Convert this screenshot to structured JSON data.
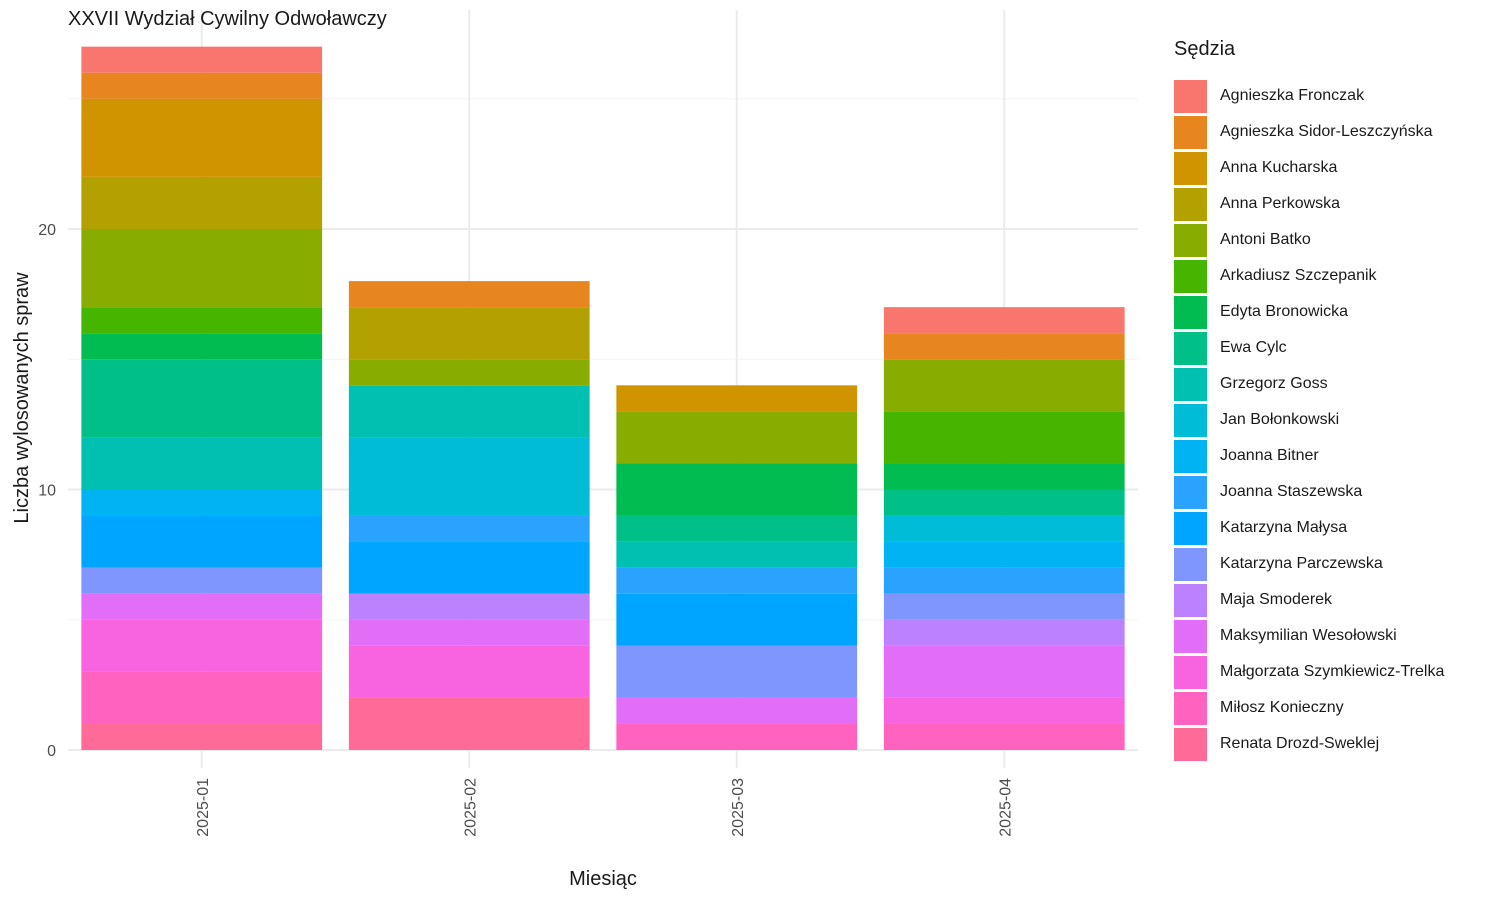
{
  "chart_data": {
    "type": "bar",
    "stacked": true,
    "title": "XXVII Wydział Cywilny Odwoławczy",
    "xlabel": "Miesiąc",
    "ylabel": "Liczba wylosowanych spraw",
    "ylim": [
      0,
      28
    ],
    "yticks": [
      0,
      10,
      20
    ],
    "grid": true,
    "legend_title": "Sędzia",
    "legend_position": "right",
    "categories": [
      "2025-01",
      "2025-02",
      "2025-03",
      "2025-04"
    ],
    "series": [
      {
        "name": "Agnieszka Fronczak",
        "color": "#F8766D",
        "values": [
          1,
          0,
          0,
          1
        ]
      },
      {
        "name": "Agnieszka Sidor-Leszczyńska",
        "color": "#E7851E",
        "values": [
          1,
          1,
          0,
          1
        ]
      },
      {
        "name": "Anna Kucharska",
        "color": "#D09400",
        "values": [
          3,
          0,
          1,
          0
        ]
      },
      {
        "name": "Anna Perkowska",
        "color": "#B2A100",
        "values": [
          2,
          2,
          0,
          0
        ]
      },
      {
        "name": "Antoni Batko",
        "color": "#89AC00",
        "values": [
          3,
          1,
          2,
          2
        ]
      },
      {
        "name": "Arkadiusz Szczepanik",
        "color": "#45B500",
        "values": [
          1,
          0,
          0,
          2
        ]
      },
      {
        "name": "Edyta Bronowicka",
        "color": "#00BC51",
        "values": [
          1,
          0,
          2,
          1
        ]
      },
      {
        "name": "Ewa Cylc",
        "color": "#00C087",
        "values": [
          3,
          0,
          1,
          1
        ]
      },
      {
        "name": "Grzegorz Goss",
        "color": "#00C0B2",
        "values": [
          2,
          2,
          1,
          0
        ]
      },
      {
        "name": "Jan Bołonkowski",
        "color": "#00BCD6",
        "values": [
          0,
          3,
          0,
          1
        ]
      },
      {
        "name": "Joanna Bitner",
        "color": "#00B3F2",
        "values": [
          1,
          0,
          0,
          1
        ]
      },
      {
        "name": "Joanna Staszewska",
        "color": "#29A3FF",
        "values": [
          0,
          1,
          1,
          1
        ]
      },
      {
        "name": "Katarzyna Małysa",
        "color": "#00A5FF",
        "values": [
          2,
          2,
          2,
          0
        ]
      },
      {
        "name": "Katarzyna Parczewska",
        "color": "#7F96FF",
        "values": [
          1,
          0,
          2,
          1
        ]
      },
      {
        "name": "Maja Smoderek",
        "color": "#BC81FF",
        "values": [
          0,
          1,
          0,
          1
        ]
      },
      {
        "name": "Maksymilian Wesołowski",
        "color": "#E26EF7",
        "values": [
          1,
          1,
          1,
          2
        ]
      },
      {
        "name": "Małgorzata Szymkiewicz-Trelka",
        "color": "#F863DF",
        "values": [
          2,
          2,
          0,
          1
        ]
      },
      {
        "name": "Miłosz Konieczny",
        "color": "#FF62BF",
        "values": [
          2,
          0,
          1,
          1
        ]
      },
      {
        "name": "Renata Drozd-Sweklej",
        "color": "#FF6A98",
        "values": [
          1,
          2,
          0,
          0
        ]
      }
    ]
  }
}
